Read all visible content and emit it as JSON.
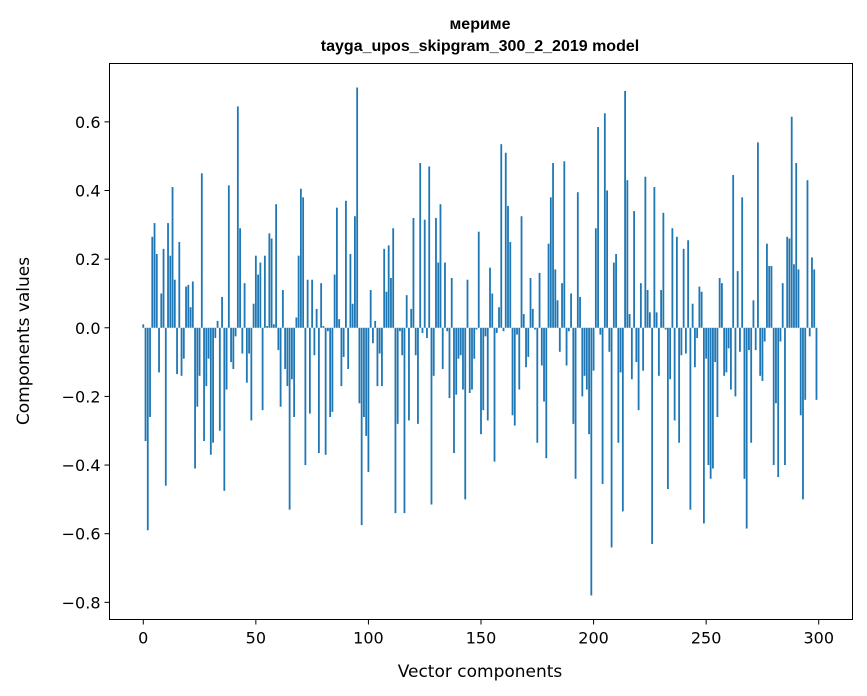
{
  "chart_data": {
    "type": "bar",
    "title": "мериме",
    "subtitle": "tayga_upos_skipgram_300_2_2019 model",
    "xlabel": "Vector components",
    "ylabel": "Components values",
    "xlim": [
      -15,
      315
    ],
    "ylim": [
      -0.85,
      0.77
    ],
    "xticks": [
      0,
      50,
      100,
      150,
      200,
      250,
      300
    ],
    "xtick_labels": [
      "0",
      "50",
      "100",
      "150",
      "200",
      "250",
      "300"
    ],
    "yticks": [
      -0.8,
      -0.6,
      -0.4,
      -0.2,
      0.0,
      0.2,
      0.4,
      0.6
    ],
    "ytick_labels": [
      "−0.8",
      "−0.6",
      "−0.4",
      "−0.2",
      "0.0",
      "0.2",
      "0.4",
      "0.6"
    ],
    "grid": false,
    "color": "#1f77b4",
    "values": [
      0.01,
      -0.33,
      -0.59,
      -0.26,
      0.265,
      0.305,
      0.215,
      -0.13,
      0.1,
      0.23,
      -0.46,
      0.305,
      0.21,
      0.41,
      0.14,
      -0.135,
      0.25,
      -0.14,
      -0.09,
      0.12,
      0.125,
      0.06,
      0.135,
      -0.41,
      -0.23,
      -0.14,
      0.45,
      -0.33,
      -0.17,
      -0.09,
      -0.37,
      -0.335,
      -0.03,
      0.02,
      -0.3,
      0.09,
      -0.475,
      -0.18,
      0.415,
      -0.1,
      -0.12,
      -0.025,
      0.645,
      0.29,
      -0.075,
      0.13,
      -0.16,
      -0.075,
      -0.27,
      0.07,
      0.21,
      0.155,
      0.19,
      -0.24,
      0.21,
      0.005,
      0.275,
      0.26,
      0.01,
      0.36,
      -0.065,
      -0.23,
      0.11,
      -0.12,
      -0.17,
      -0.53,
      -0.15,
      -0.26,
      0.03,
      0.21,
      0.405,
      0.38,
      -0.4,
      0.14,
      -0.25,
      0.14,
      -0.08,
      0.055,
      -0.365,
      0.13,
      0.005,
      -0.37,
      -0.01,
      -0.26,
      -0.245,
      0.155,
      0.35,
      0.025,
      -0.17,
      -0.085,
      0.37,
      -0.12,
      0.215,
      0.07,
      0.325,
      0.7,
      -0.22,
      -0.575,
      -0.26,
      -0.315,
      -0.42,
      0.11,
      -0.045,
      0.02,
      -0.17,
      -0.075,
      -0.17,
      0.23,
      0.105,
      0.24,
      0.145,
      0.29,
      -0.54,
      -0.28,
      -0.01,
      -0.08,
      -0.54,
      0.095,
      -0.27,
      0.055,
      0.32,
      -0.08,
      -0.28,
      0.48,
      -0.015,
      0.315,
      -0.03,
      0.47,
      -0.515,
      -0.14,
      0.32,
      0.19,
      0.36,
      -0.12,
      0.19,
      -0.01,
      -0.205,
      0.145,
      -0.365,
      -0.195,
      -0.09,
      -0.08,
      -0.18,
      -0.5,
      0.14,
      -0.19,
      -0.18,
      -0.09,
      -0.005,
      0.28,
      -0.31,
      -0.24,
      -0.025,
      -0.27,
      0.175,
      0.1,
      -0.39,
      -0.015,
      0.06,
      0.535,
      -0.01,
      0.51,
      0.355,
      0.25,
      -0.255,
      -0.285,
      -0.02,
      -0.18,
      0.325,
      0.04,
      -0.115,
      -0.085,
      0.145,
      0.055,
      -0.005,
      -0.335,
      0.16,
      -0.11,
      -0.215,
      -0.38,
      0.245,
      0.38,
      0.48,
      0.17,
      0.08,
      -0.07,
      0.13,
      0.485,
      -0.11,
      -0.01,
      0.1,
      -0.28,
      -0.44,
      0.395,
      0.09,
      -0.2,
      -0.14,
      -0.18,
      -0.31,
      -0.78,
      -0.125,
      0.29,
      0.585,
      -0.02,
      -0.455,
      0.625,
      0.4,
      -0.07,
      -0.64,
      0.19,
      0.215,
      -0.335,
      -0.13,
      -0.535,
      0.69,
      0.43,
      0.04,
      -0.15,
      0.34,
      -0.1,
      -0.24,
      0.13,
      -0.125,
      0.44,
      0.11,
      0.045,
      -0.63,
      0.41,
      0.045,
      -0.14,
      0.11,
      0.335,
      -0.005,
      -0.47,
      -0.15,
      0.29,
      -0.27,
      0.265,
      -0.335,
      -0.08,
      0.23,
      -0.075,
      0.255,
      -0.53,
      0.07,
      -0.115,
      -0.03,
      0.12,
      0.105,
      -0.57,
      -0.09,
      -0.4,
      -0.44,
      -0.41,
      -0.1,
      -0.26,
      0.145,
      0.13,
      -0.14,
      -0.13,
      -0.06,
      -0.18,
      0.445,
      -0.2,
      0.165,
      -0.07,
      0.38,
      -0.44,
      -0.585,
      -0.065,
      -0.335,
      0.08,
      -0.065,
      0.54,
      -0.14,
      -0.155,
      -0.04,
      0.245,
      0.18,
      0.18,
      -0.4,
      -0.22,
      -0.435,
      -0.04,
      0.13,
      -0.4,
      0.265,
      0.26,
      0.615,
      0.185,
      0.48,
      0.17,
      -0.255,
      -0.5,
      -0.21,
      0.43,
      -0.025,
      0.205,
      0.17,
      -0.21
    ]
  }
}
